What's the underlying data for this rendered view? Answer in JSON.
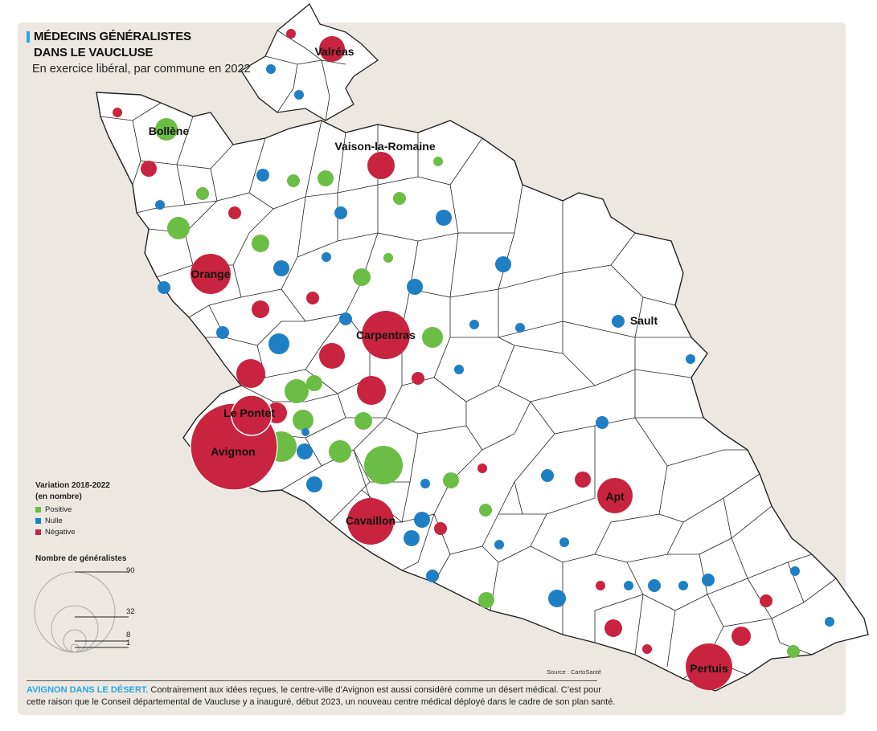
{
  "title_line1": "MÉDECINS GÉNÉRALISTES",
  "title_line2": "DANS LE VAUCLUSE",
  "subtitle": "En exercice libéral, par commune en 2022",
  "legend": {
    "variation_title_1": "Variation 2018-2022",
    "variation_title_2": "(en nombre)",
    "items": [
      {
        "label": "Positive",
        "color": "#6cbd45"
      },
      {
        "label": "Nulle",
        "color": "#1f7fc4"
      },
      {
        "label": "Négative",
        "color": "#c8233f"
      }
    ],
    "size_title": "Nombre de généralistes",
    "size_values": [
      "90",
      "32",
      "8",
      "1"
    ]
  },
  "cities": {
    "valreas": "Valréas",
    "bollene": "Bollène",
    "vaison": "Vaison-la-Romaine",
    "orange": "Orange",
    "sault": "Sault",
    "carpentras": "Carpentras",
    "le_pontet": "Le Pontet",
    "avignon": "Avignon",
    "apt": "Apt",
    "cavaillon": "Cavaillon",
    "pertuis": "Pertuis"
  },
  "source": "Source : CartoSanté",
  "caption": {
    "lead": "AVIGNON DANS LE DÉSERT.",
    "text": " Contrairement aux idées reçues, le centre-ville d’Avignon est aussi considéré comme un désert médical. C’est pour cette raison que le Conseil départemental de Vaucluse y a inauguré, début 2023, un nouveau centre médical déployé dans le cadre de son plan santé."
  },
  "colors": {
    "positive": "#6cbd45",
    "nulle": "#1f7fc4",
    "negative": "#c8233f",
    "panel": "#ece8e1"
  }
}
